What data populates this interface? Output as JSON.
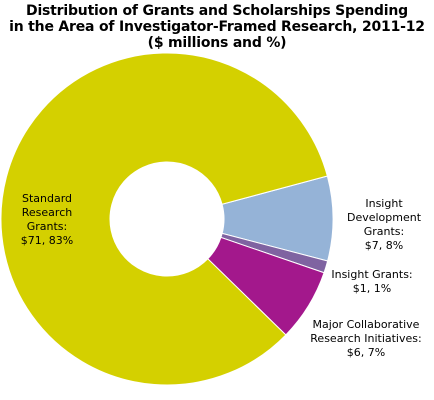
{
  "chart_data": {
    "type": "pie",
    "style": "donut",
    "title_lines": [
      "Distribution of Grants and Scholarships Spending",
      "in the Area of Investigator-Framed Research, 2011-12",
      "($ millions and %)"
    ],
    "slices": [
      {
        "name": "Insight Development Grants",
        "value": 7,
        "percent": 8,
        "color": "#95b3d7",
        "label_lines": [
          "Insight",
          "Development",
          "Grants:",
          "$7, 8%"
        ]
      },
      {
        "name": "Insight Grants",
        "value": 1,
        "percent": 1,
        "color": "#7f63a1",
        "label_lines": [
          "Insight Grants:",
          "$1, 1%"
        ]
      },
      {
        "name": "Major Collaborative Research Initiatives",
        "value": 6,
        "percent": 7,
        "color": "#a3188c",
        "label_lines": [
          "Major Collaborative",
          "Research Initiatives:",
          "$6, 7%"
        ]
      },
      {
        "name": "Standard Research Grants",
        "value": 71,
        "percent": 83,
        "color": "#d4d000",
        "label_lines": [
          "Standard",
          "Research",
          "Grants:",
          "$71, 83%"
        ]
      }
    ]
  }
}
